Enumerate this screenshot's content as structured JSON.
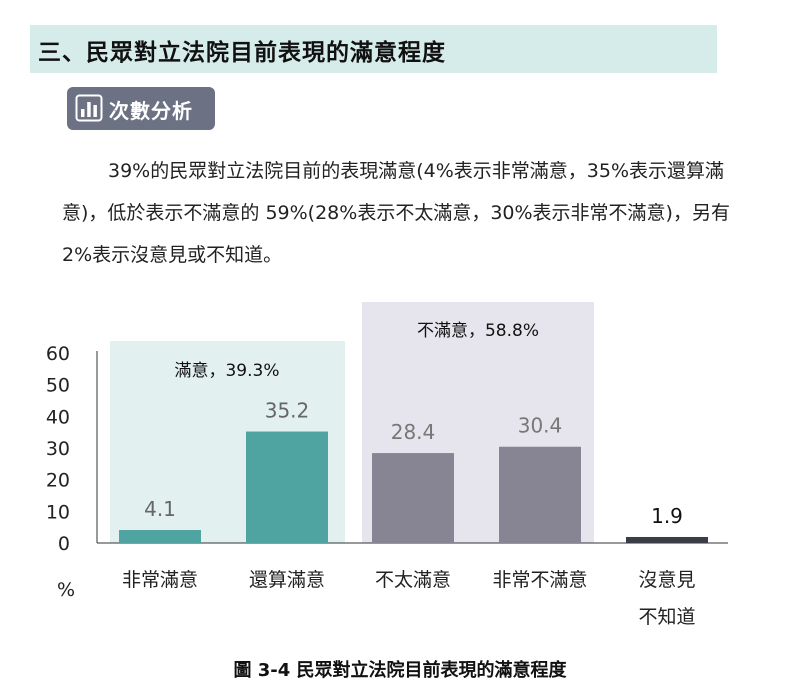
{
  "section": {
    "title": "三、民眾對立法院目前表現的滿意程度"
  },
  "badge": {
    "icon": "bar-chart-icon",
    "label": "次數分析"
  },
  "summary": {
    "text": "39%的民眾對立法院目前的表現滿意(4%表示非常滿意，35%表示還算滿意)，低於表示不滿意的 59%(28%表示不太滿意，30%表示非常不滿意)，另有 2%表示沒意見或不知道。"
  },
  "chart_data": {
    "type": "bar",
    "categories": [
      [
        "非常滿意"
      ],
      [
        "還算滿意"
      ],
      [
        "不太滿意"
      ],
      [
        "非常不滿意"
      ],
      [
        "沒意見",
        "不知道"
      ]
    ],
    "values": [
      4.1,
      35.2,
      28.4,
      30.4,
      1.9
    ],
    "value_labels": [
      "4.1",
      "35.2",
      "28.4",
      "30.4",
      "1.9"
    ],
    "ylim": [
      0,
      60
    ],
    "yticks": [
      "0",
      "10",
      "20",
      "30",
      "40",
      "50",
      "60"
    ],
    "ylabel": "%",
    "groups": [
      {
        "label": "滿意，39.3%",
        "members": [
          0,
          1
        ]
      },
      {
        "label": "不滿意，58.8%",
        "members": [
          2,
          3
        ]
      }
    ],
    "colors": {
      "satisfied": "#4fa3a0",
      "dissatisfied": "#878494",
      "no_opinion": "#3a3d45",
      "satisfied_bg": "#e2f1f0",
      "dissatisfied_bg": "#e6e5ee"
    },
    "grid": false
  },
  "figure": {
    "caption": "圖 3-4  民眾對立法院目前表現的滿意程度"
  }
}
